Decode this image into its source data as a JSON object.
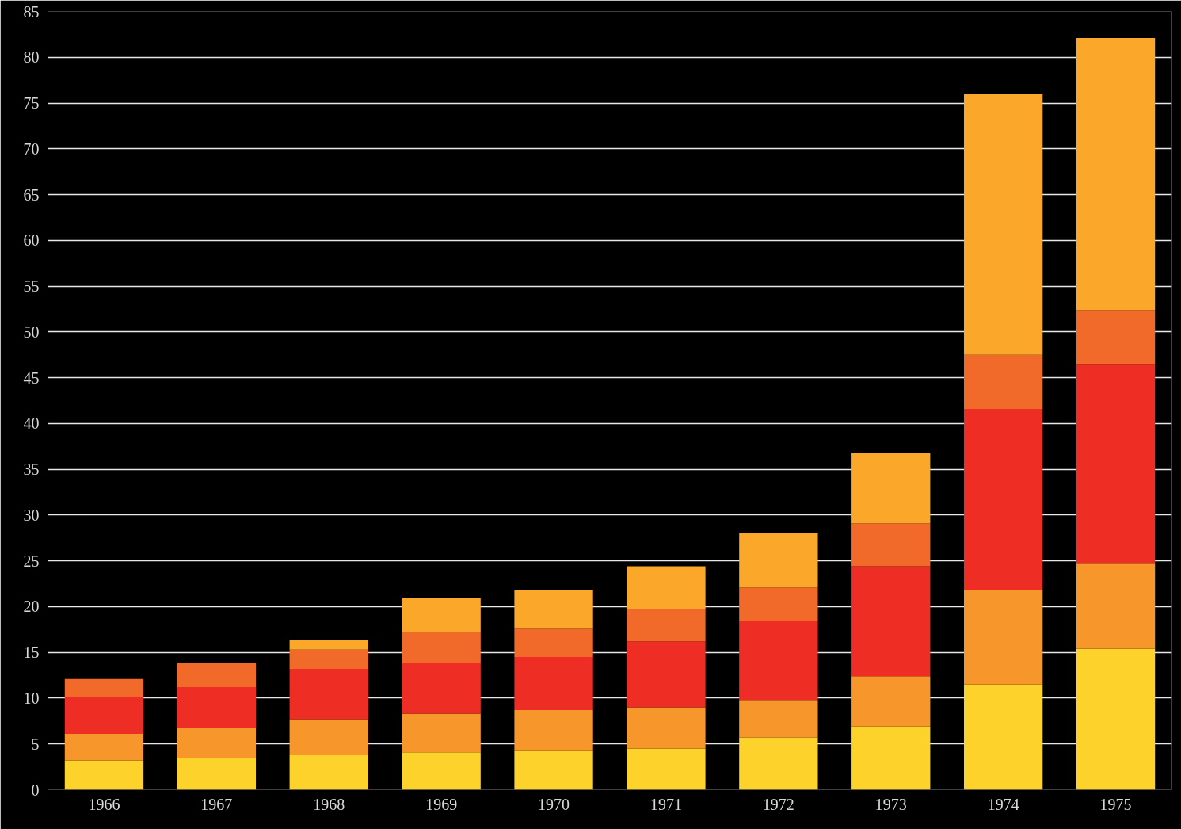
{
  "chart_data": {
    "type": "bar",
    "stacked": true,
    "categories": [
      "1966",
      "1967",
      "1968",
      "1969",
      "1970",
      "1971",
      "1972",
      "1973",
      "1974",
      "1975"
    ],
    "series": [
      {
        "color": "#fdd22a",
        "values": [
          3.2,
          3.5,
          3.8,
          4.1,
          4.3,
          4.5,
          5.7,
          6.9,
          11.5,
          15.4
        ]
      },
      {
        "color": "#f7962a",
        "values": [
          2.9,
          3.2,
          3.9,
          4.2,
          4.4,
          4.5,
          4.1,
          5.5,
          10.3,
          9.3
        ]
      },
      {
        "color": "#ee2d24",
        "values": [
          4.0,
          4.5,
          5.5,
          5.5,
          5.8,
          7.2,
          8.6,
          12.0,
          19.8,
          21.8
        ]
      },
      {
        "color": "#f26a2a",
        "values": [
          2.0,
          2.7,
          2.1,
          3.4,
          3.1,
          3.5,
          3.7,
          4.7,
          5.9,
          5.9
        ]
      },
      {
        "color": "#fba82a",
        "values": [
          0,
          0,
          1.1,
          3.7,
          4.2,
          4.7,
          5.9,
          7.7,
          28.5,
          29.7
        ]
      }
    ],
    "ylim": [
      0,
      85
    ],
    "yticks": [
      0,
      5,
      10,
      15,
      20,
      25,
      30,
      35,
      40,
      45,
      50,
      55,
      60,
      65,
      70,
      75,
      80,
      85
    ],
    "grid": "y"
  }
}
